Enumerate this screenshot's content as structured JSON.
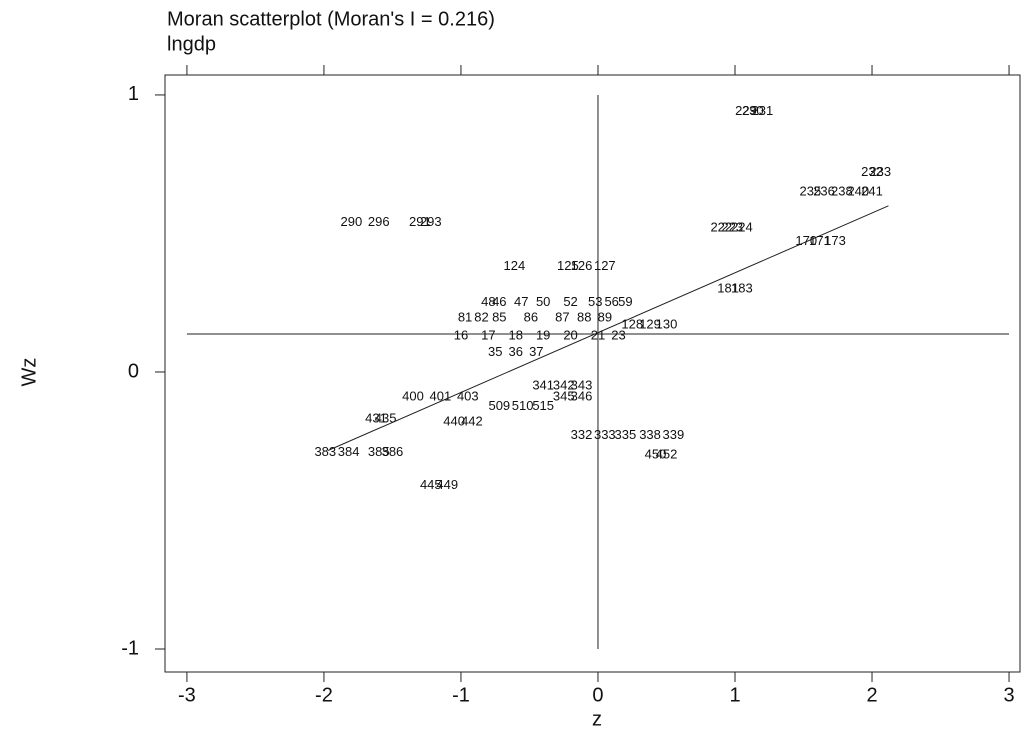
{
  "chart_data": {
    "type": "scatter",
    "title": "Moran scatterplot (Moran's I = 0.216)",
    "subtitle": "lngdp",
    "x_label": "z",
    "y_label": "Wz",
    "xlim": [
      -3.16,
      3.08
    ],
    "ylim": [
      -1.083,
      1.072
    ],
    "xticks": [
      -3,
      -2,
      -1,
      0,
      1,
      2,
      3
    ],
    "yticks": [
      -1,
      0,
      1
    ],
    "hline": 0.137,
    "vline": 0,
    "fit": {
      "intercept": 0.142,
      "slope": 0.216,
      "xrange": [
        -1.97,
        2.12
      ]
    },
    "color": "#222222",
    "points": [
      {
        "label": "229",
        "x": 1.08,
        "y": 0.94
      },
      {
        "label": "230",
        "x": 1.13,
        "y": 0.94
      },
      {
        "label": "231",
        "x": 1.2,
        "y": 0.94
      },
      {
        "label": "232",
        "x": 2.0,
        "y": 0.72
      },
      {
        "label": "233",
        "x": 2.06,
        "y": 0.72
      },
      {
        "label": "235",
        "x": 1.55,
        "y": 0.65
      },
      {
        "label": "236",
        "x": 1.65,
        "y": 0.65
      },
      {
        "label": "238",
        "x": 1.78,
        "y": 0.65
      },
      {
        "label": "240",
        "x": 1.9,
        "y": 0.65
      },
      {
        "label": "241",
        "x": 2.0,
        "y": 0.65
      },
      {
        "label": "222",
        "x": 0.9,
        "y": 0.52
      },
      {
        "label": "223",
        "x": 0.98,
        "y": 0.52
      },
      {
        "label": "224",
        "x": 1.05,
        "y": 0.52
      },
      {
        "label": "170",
        "x": 1.52,
        "y": 0.47
      },
      {
        "label": "171",
        "x": 1.62,
        "y": 0.47
      },
      {
        "label": "173",
        "x": 1.73,
        "y": 0.47
      },
      {
        "label": "181",
        "x": 0.95,
        "y": 0.3
      },
      {
        "label": "183",
        "x": 1.05,
        "y": 0.3
      },
      {
        "label": "290",
        "x": -1.8,
        "y": 0.54
      },
      {
        "label": "296",
        "x": -1.6,
        "y": 0.54
      },
      {
        "label": "291",
        "x": -1.3,
        "y": 0.54
      },
      {
        "label": "293",
        "x": -1.22,
        "y": 0.54
      },
      {
        "label": "124",
        "x": -0.61,
        "y": 0.38
      },
      {
        "label": "125",
        "x": -0.22,
        "y": 0.38
      },
      {
        "label": "126",
        "x": -0.12,
        "y": 0.38
      },
      {
        "label": "127",
        "x": 0.05,
        "y": 0.38
      },
      {
        "label": "48",
        "x": -0.8,
        "y": 0.25
      },
      {
        "label": "46",
        "x": -0.72,
        "y": 0.25
      },
      {
        "label": "47",
        "x": -0.56,
        "y": 0.25
      },
      {
        "label": "50",
        "x": -0.4,
        "y": 0.25
      },
      {
        "label": "52",
        "x": -0.2,
        "y": 0.25
      },
      {
        "label": "53",
        "x": -0.02,
        "y": 0.25
      },
      {
        "label": "56",
        "x": 0.1,
        "y": 0.25
      },
      {
        "label": "59",
        "x": 0.2,
        "y": 0.25
      },
      {
        "label": "81",
        "x": -0.97,
        "y": 0.195
      },
      {
        "label": "82",
        "x": -0.85,
        "y": 0.195
      },
      {
        "label": "85",
        "x": -0.72,
        "y": 0.195
      },
      {
        "label": "86",
        "x": -0.49,
        "y": 0.195
      },
      {
        "label": "87",
        "x": -0.26,
        "y": 0.195
      },
      {
        "label": "88",
        "x": -0.1,
        "y": 0.195
      },
      {
        "label": "89",
        "x": 0.05,
        "y": 0.195
      },
      {
        "label": "128",
        "x": 0.25,
        "y": 0.17
      },
      {
        "label": "129",
        "x": 0.38,
        "y": 0.17
      },
      {
        "label": "130",
        "x": 0.5,
        "y": 0.17
      },
      {
        "label": "16",
        "x": -1.0,
        "y": 0.13
      },
      {
        "label": "17",
        "x": -0.8,
        "y": 0.13
      },
      {
        "label": "18",
        "x": -0.6,
        "y": 0.13
      },
      {
        "label": "19",
        "x": -0.4,
        "y": 0.13
      },
      {
        "label": "20",
        "x": -0.2,
        "y": 0.13
      },
      {
        "label": "21",
        "x": 0.0,
        "y": 0.13
      },
      {
        "label": "23",
        "x": 0.15,
        "y": 0.13
      },
      {
        "label": "35",
        "x": -0.75,
        "y": 0.07
      },
      {
        "label": "36",
        "x": -0.6,
        "y": 0.07
      },
      {
        "label": "37",
        "x": -0.45,
        "y": 0.07
      },
      {
        "label": "341",
        "x": -0.4,
        "y": -0.05
      },
      {
        "label": "342",
        "x": -0.25,
        "y": -0.05
      },
      {
        "label": "343",
        "x": -0.12,
        "y": -0.05
      },
      {
        "label": "400",
        "x": -1.35,
        "y": -0.09
      },
      {
        "label": "401",
        "x": -1.15,
        "y": -0.09
      },
      {
        "label": "403",
        "x": -0.95,
        "y": -0.09
      },
      {
        "label": "345",
        "x": -0.25,
        "y": -0.09
      },
      {
        "label": "346",
        "x": -0.12,
        "y": -0.09
      },
      {
        "label": "509",
        "x": -0.72,
        "y": -0.125
      },
      {
        "label": "510",
        "x": -0.55,
        "y": -0.125
      },
      {
        "label": "515",
        "x": -0.4,
        "y": -0.125
      },
      {
        "label": "431",
        "x": -1.62,
        "y": -0.17
      },
      {
        "label": "435",
        "x": -1.55,
        "y": -0.17
      },
      {
        "label": "440",
        "x": -1.05,
        "y": -0.18
      },
      {
        "label": "442",
        "x": -0.92,
        "y": -0.18
      },
      {
        "label": "332",
        "x": -0.12,
        "y": -0.23
      },
      {
        "label": "333",
        "x": 0.05,
        "y": -0.23
      },
      {
        "label": "335",
        "x": 0.2,
        "y": -0.23
      },
      {
        "label": "338",
        "x": 0.38,
        "y": -0.23
      },
      {
        "label": "339",
        "x": 0.55,
        "y": -0.23
      },
      {
        "label": "450",
        "x": 0.42,
        "y": -0.3
      },
      {
        "label": "452",
        "x": 0.5,
        "y": -0.3
      },
      {
        "label": "383",
        "x": -1.99,
        "y": -0.29
      },
      {
        "label": "384",
        "x": -1.82,
        "y": -0.29
      },
      {
        "label": "385",
        "x": -1.6,
        "y": -0.29
      },
      {
        "label": "386",
        "x": -1.5,
        "y": -0.29
      },
      {
        "label": "445",
        "x": -1.22,
        "y": -0.41
      },
      {
        "label": "449",
        "x": -1.1,
        "y": -0.41
      }
    ]
  }
}
